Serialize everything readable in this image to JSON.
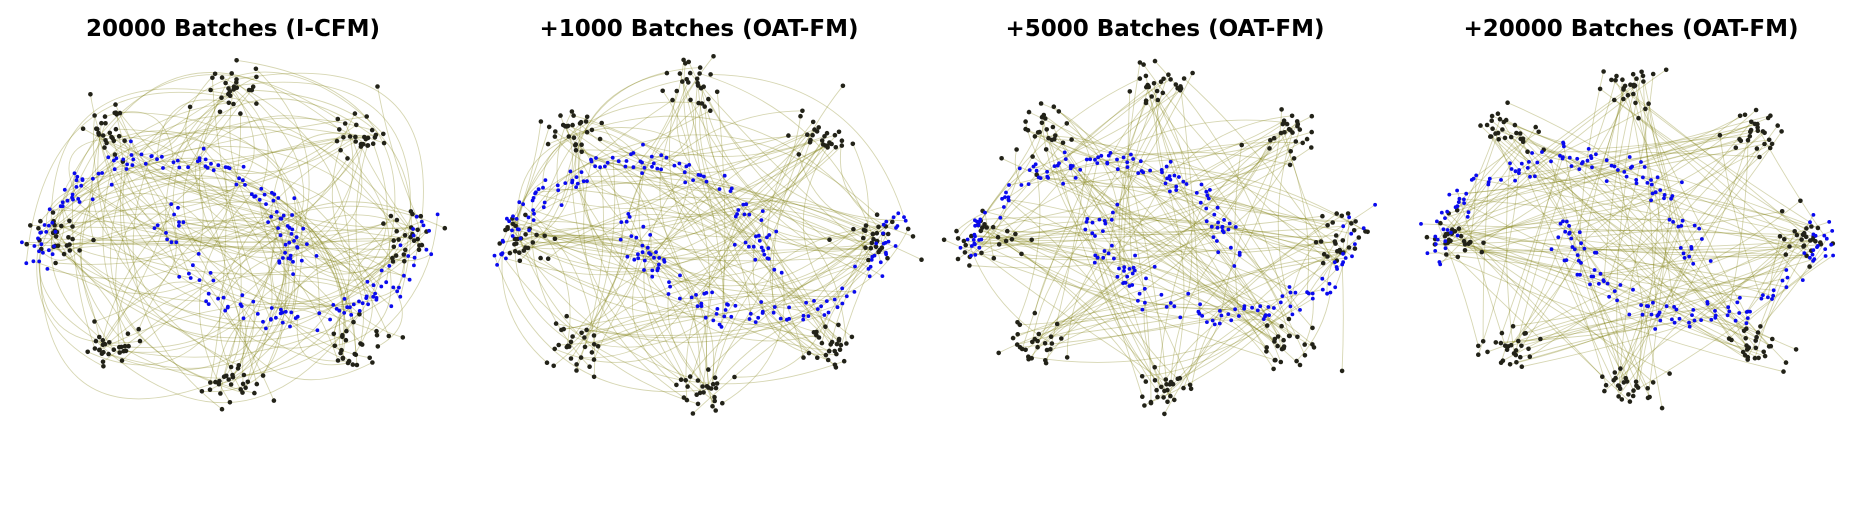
{
  "chart_data": [
    {
      "type": "scatter",
      "title": "20000 Batches (I-CFM)",
      "source_clusters": 8,
      "target_distribution": "two moons (S-curve)",
      "trajectory_style": "curved, tangled",
      "series": [
        {
          "role": "source",
          "color": "#222218"
        },
        {
          "role": "trajectory",
          "color": "#7f7f10"
        },
        {
          "role": "target",
          "color": "#0a0aee"
        }
      ],
      "xlim": [
        -1,
        1
      ],
      "ylim": [
        -1,
        1
      ],
      "grid": false,
      "axes_visible": false
    },
    {
      "type": "scatter",
      "title": "+1000 Batches (OAT-FM)",
      "source_clusters": 8,
      "target_distribution": "two moons (S-curve)",
      "trajectory_style": "partially straightened",
      "series": [
        {
          "role": "source",
          "color": "#222218"
        },
        {
          "role": "trajectory",
          "color": "#7f7f10"
        },
        {
          "role": "target",
          "color": "#0a0aee"
        }
      ],
      "xlim": [
        -1,
        1
      ],
      "ylim": [
        -1,
        1
      ],
      "grid": false,
      "axes_visible": false
    },
    {
      "type": "scatter",
      "title": "+5000 Batches (OAT-FM)",
      "source_clusters": 8,
      "target_distribution": "two moons (S-curve)",
      "trajectory_style": "mostly straight",
      "series": [
        {
          "role": "source",
          "color": "#222218"
        },
        {
          "role": "trajectory",
          "color": "#7f7f10"
        },
        {
          "role": "target",
          "color": "#0a0aee"
        }
      ],
      "xlim": [
        -1,
        1
      ],
      "ylim": [
        -1,
        1
      ],
      "grid": false,
      "axes_visible": false
    },
    {
      "type": "scatter",
      "title": "+20000 Batches (OAT-FM)",
      "source_clusters": 8,
      "target_distribution": "two moons (S-curve)",
      "trajectory_style": "straight",
      "series": [
        {
          "role": "source",
          "color": "#222218"
        },
        {
          "role": "trajectory",
          "color": "#7f7f10"
        },
        {
          "role": "target",
          "color": "#0a0aee"
        }
      ],
      "xlim": [
        -1,
        1
      ],
      "ylim": [
        -1,
        1
      ],
      "grid": false,
      "axes_visible": false
    }
  ]
}
